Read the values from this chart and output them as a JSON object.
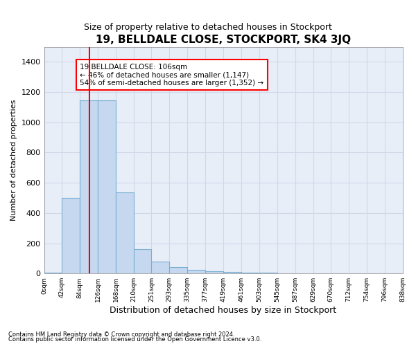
{
  "title": "19, BELLDALE CLOSE, STOCKPORT, SK4 3JQ",
  "subtitle": "Size of property relative to detached houses in Stockport",
  "xlabel": "Distribution of detached houses by size in Stockport",
  "ylabel": "Number of detached properties",
  "bar_color": "#c5d8ef",
  "bar_edge_color": "#7aafd4",
  "background_color": "#e8eef8",
  "grid_color": "#d0d8e8",
  "red_line_x": 106,
  "annotation_text": "19 BELLDALE CLOSE: 106sqm\n← 46% of detached houses are smaller (1,147)\n54% of semi-detached houses are larger (1,352) →",
  "footer_line1": "Contains HM Land Registry data © Crown copyright and database right 2024.",
  "footer_line2": "Contains public sector information licensed under the Open Government Licence v3.0.",
  "bin_edges": [
    0,
    42,
    84,
    126,
    168,
    210,
    251,
    293,
    335,
    377,
    419,
    461,
    503,
    545,
    587,
    629,
    670,
    712,
    754,
    796,
    838
  ],
  "bin_labels": [
    "0sqm",
    "42sqm",
    "84sqm",
    "126sqm",
    "168sqm",
    "210sqm",
    "251sqm",
    "293sqm",
    "335sqm",
    "377sqm",
    "419sqm",
    "461sqm",
    "503sqm",
    "545sqm",
    "587sqm",
    "629sqm",
    "670sqm",
    "712sqm",
    "754sqm",
    "796sqm",
    "838sqm"
  ],
  "bar_heights": [
    5,
    500,
    1147,
    1147,
    535,
    160,
    80,
    40,
    25,
    15,
    8,
    5,
    4,
    3,
    3,
    2,
    2,
    2,
    2,
    2
  ],
  "ylim": [
    0,
    1500
  ],
  "yticks": [
    0,
    200,
    400,
    600,
    800,
    1000,
    1200,
    1400
  ]
}
